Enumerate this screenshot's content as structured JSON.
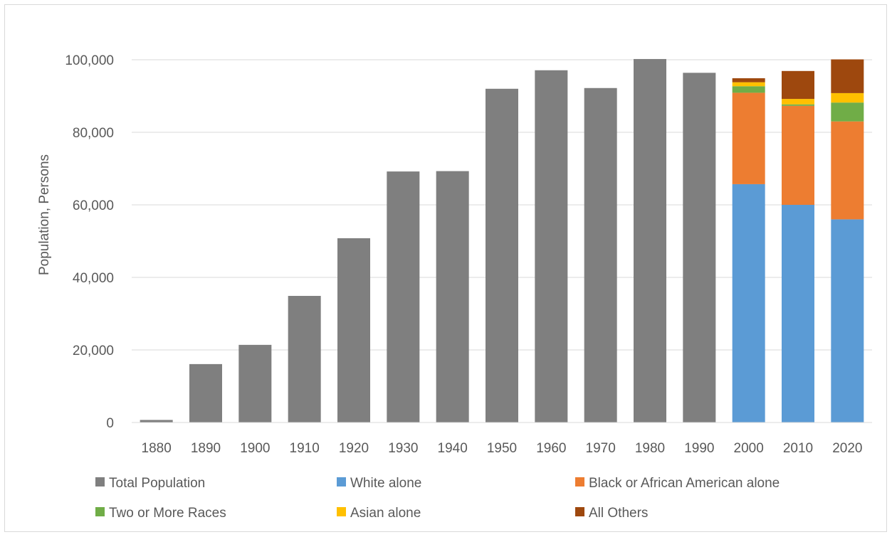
{
  "chart_data": {
    "type": "bar",
    "title": "",
    "xlabel": "",
    "ylabel": "Population, Persons",
    "ylim": [
      0,
      100000
    ],
    "yticks": [
      0,
      20000,
      40000,
      60000,
      80000,
      100000
    ],
    "ytick_labels": [
      "0",
      "20,000",
      "40,000",
      "60,000",
      "80,000",
      "100,000"
    ],
    "grid": true,
    "legend_position": "bottom",
    "categories": [
      "1880",
      "1890",
      "1900",
      "1910",
      "1920",
      "1930",
      "1940",
      "1950",
      "1960",
      "1970",
      "1980",
      "1990",
      "2000",
      "2010",
      "2020"
    ],
    "series": [
      {
        "name": "Total Population",
        "color": "#7f7f7f",
        "values": [
          700,
          16100,
          21400,
          34900,
          50800,
          69200,
          69300,
          92000,
          97100,
          92200,
          100200,
          96400,
          null,
          null,
          null
        ]
      },
      {
        "name": "White alone",
        "color": "#5b9bd5",
        "values": [
          null,
          null,
          null,
          null,
          null,
          null,
          null,
          null,
          null,
          null,
          null,
          null,
          65700,
          60000,
          56000
        ]
      },
      {
        "name": "Black or African American alone",
        "color": "#ed7d31",
        "values": [
          null,
          null,
          null,
          null,
          null,
          null,
          null,
          null,
          null,
          null,
          null,
          null,
          25200,
          27300,
          27000
        ]
      },
      {
        "name": "Two or More Races",
        "color": "#70ad47",
        "values": [
          null,
          null,
          null,
          null,
          null,
          null,
          null,
          null,
          null,
          null,
          null,
          null,
          1800,
          400,
          5200
        ]
      },
      {
        "name": "Asian alone",
        "color": "#ffc000",
        "values": [
          null,
          null,
          null,
          null,
          null,
          null,
          null,
          null,
          null,
          null,
          null,
          null,
          1100,
          1500,
          2600
        ]
      },
      {
        "name": "All Others",
        "color": "#9e480e",
        "values": [
          null,
          null,
          null,
          null,
          null,
          null,
          null,
          null,
          null,
          null,
          null,
          null,
          1100,
          7700,
          9300
        ]
      }
    ]
  }
}
